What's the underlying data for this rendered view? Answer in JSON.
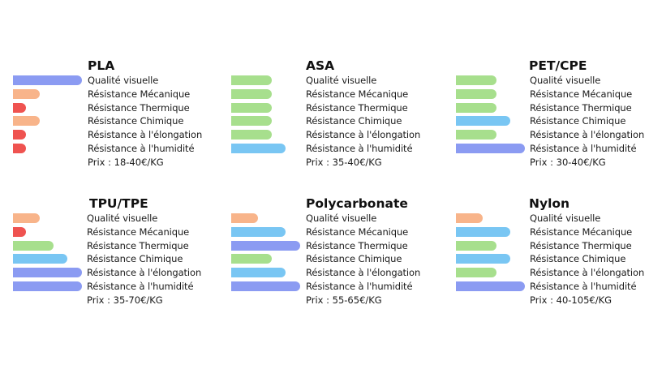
{
  "colors": {
    "red": "#ef5350",
    "orange": "#f8b48a",
    "green": "#a7df8d",
    "light-blue": "#79c6f3",
    "blue": "#8b9bf2"
  },
  "property_labels": [
    "Qualité visuelle",
    "Résistance Mécanique",
    "Résistance Thermique",
    "Résistance Chimique",
    "Résistance à l'élongation",
    "Résistance à l'humidité"
  ],
  "materials": [
    {
      "name": "PLA",
      "price": "Prix : 18-40€/KG",
      "ratings": [
        {
          "level": 5,
          "color": "blue"
        },
        {
          "level": 2,
          "color": "orange"
        },
        {
          "level": 1,
          "color": "red"
        },
        {
          "level": 2,
          "color": "orange"
        },
        {
          "level": 1,
          "color": "red"
        },
        {
          "level": 1,
          "color": "red"
        }
      ]
    },
    {
      "name": "ASA",
      "price": "Prix : 35-40€/KG",
      "ratings": [
        {
          "level": 3,
          "color": "green"
        },
        {
          "level": 3,
          "color": "green"
        },
        {
          "level": 3,
          "color": "green"
        },
        {
          "level": 3,
          "color": "green"
        },
        {
          "level": 3,
          "color": "green"
        },
        {
          "level": 4,
          "color": "light-blue"
        }
      ]
    },
    {
      "name": "PET/CPE",
      "price": "Prix : 30-40€/KG",
      "ratings": [
        {
          "level": 3,
          "color": "green"
        },
        {
          "level": 3,
          "color": "green"
        },
        {
          "level": 3,
          "color": "green"
        },
        {
          "level": 4,
          "color": "light-blue"
        },
        {
          "level": 3,
          "color": "green"
        },
        {
          "level": 5,
          "color": "blue"
        }
      ]
    },
    {
      "name": "TPU/TPE",
      "price": "Prix : 35-70€/KG",
      "ratings": [
        {
          "level": 2,
          "color": "orange"
        },
        {
          "level": 1,
          "color": "red"
        },
        {
          "level": 3,
          "color": "green"
        },
        {
          "level": 4,
          "color": "light-blue"
        },
        {
          "level": 5,
          "color": "blue"
        },
        {
          "level": 5,
          "color": "blue"
        }
      ]
    },
    {
      "name": "Polycarbonate",
      "price": "Prix : 55-65€/KG",
      "ratings": [
        {
          "level": 2,
          "color": "orange"
        },
        {
          "level": 4,
          "color": "light-blue"
        },
        {
          "level": 5,
          "color": "blue"
        },
        {
          "level": 3,
          "color": "green"
        },
        {
          "level": 4,
          "color": "light-blue"
        },
        {
          "level": 5,
          "color": "blue"
        }
      ]
    },
    {
      "name": "Nylon",
      "price": "Prix : 40-105€/KG",
      "ratings": [
        {
          "level": 2,
          "color": "orange"
        },
        {
          "level": 4,
          "color": "light-blue"
        },
        {
          "level": 3,
          "color": "green"
        },
        {
          "level": 4,
          "color": "light-blue"
        },
        {
          "level": 3,
          "color": "green"
        },
        {
          "level": 5,
          "color": "blue"
        }
      ]
    }
  ]
}
